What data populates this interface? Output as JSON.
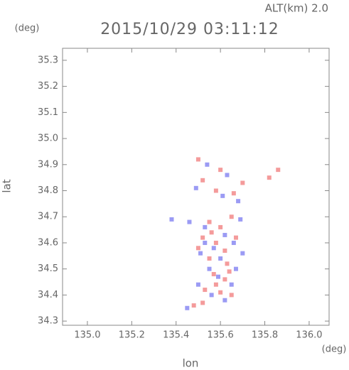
{
  "chart_data": {
    "type": "scatter",
    "title": "2015/10/29 03:11:12",
    "altitude_label": "ALT(km) 2.0",
    "y_unit": "(deg)",
    "x_unit": "(deg)",
    "xlabel": "lon",
    "ylabel": "lat",
    "xlim": [
      134.888,
      136.09
    ],
    "ylim": [
      34.284,
      35.346
    ],
    "xticks": [
      {
        "value": 135.0,
        "label": "135.0"
      },
      135.2,
      135.4,
      135.6,
      135.8,
      {
        "value": 136.0,
        "label": "136.0"
      }
    ],
    "yticks": [
      35.3,
      35.2,
      35.1,
      {
        "value": 35.0,
        "label": "35.0"
      },
      34.9,
      34.8,
      34.7,
      34.6,
      34.5,
      34.4,
      34.3
    ],
    "series": [
      {
        "color": "#f28a8a",
        "x": [
          135.5,
          135.6,
          135.52,
          135.58,
          135.66,
          135.7,
          135.82,
          135.86,
          135.55,
          135.6,
          135.65,
          135.52,
          135.58,
          135.62,
          135.55,
          135.63,
          135.57,
          135.62,
          135.53,
          135.6,
          135.65,
          135.52,
          135.58,
          135.48,
          135.67,
          135.5,
          135.64,
          135.56
        ],
        "y": [
          34.92,
          34.88,
          34.84,
          34.8,
          34.79,
          34.83,
          34.85,
          34.88,
          34.68,
          34.66,
          34.7,
          34.62,
          34.6,
          34.57,
          34.54,
          34.52,
          34.48,
          34.46,
          34.42,
          34.41,
          34.4,
          34.37,
          34.44,
          34.36,
          34.62,
          34.58,
          34.49,
          34.64
        ]
      },
      {
        "color": "#8a8af2",
        "x": [
          135.54,
          135.63,
          135.49,
          135.61,
          135.68,
          135.46,
          135.53,
          135.62,
          135.57,
          135.66,
          135.51,
          135.6,
          135.67,
          135.55,
          135.59,
          135.65,
          135.5,
          135.56,
          135.62,
          135.45,
          135.69,
          135.38,
          135.53,
          135.7
        ],
        "y": [
          34.9,
          34.86,
          34.81,
          34.78,
          34.76,
          34.68,
          34.66,
          34.63,
          34.58,
          34.6,
          34.56,
          34.54,
          34.5,
          34.5,
          34.47,
          34.44,
          34.44,
          34.4,
          34.38,
          34.35,
          34.69,
          34.69,
          34.6,
          34.56
        ]
      }
    ]
  }
}
